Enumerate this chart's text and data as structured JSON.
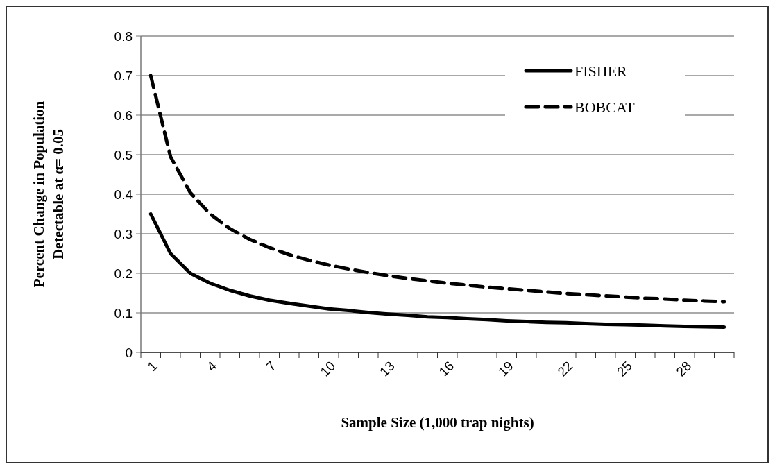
{
  "chart_data": {
    "type": "line",
    "xlabel": "Sample Size (1,000 trap nights)",
    "ylabel": "Percent Change in Population\nDetectable at α= 0.05",
    "categories": [
      "1",
      null,
      null,
      "4",
      null,
      null,
      "7",
      null,
      null,
      "10",
      null,
      null,
      "13",
      null,
      null,
      "16",
      null,
      null,
      "19",
      null,
      null,
      "22",
      null,
      null,
      "25",
      null,
      null,
      "28",
      null,
      null
    ],
    "series": [
      {
        "name": "FISHER",
        "color": "#000000",
        "line_style": "solid",
        "values": [
          0.35,
          0.25,
          0.2,
          0.175,
          0.157,
          0.143,
          0.132,
          0.124,
          0.117,
          0.11,
          0.106,
          0.101,
          0.097,
          0.094,
          0.09,
          0.088,
          0.085,
          0.083,
          0.08,
          0.078,
          0.076,
          0.075,
          0.073,
          0.071,
          0.07,
          0.069,
          0.067,
          0.066,
          0.065,
          0.064
        ]
      },
      {
        "name": "BOBCAT",
        "color": "#000000",
        "line_style": "dashed",
        "values": [
          0.7,
          0.495,
          0.404,
          0.35,
          0.313,
          0.286,
          0.265,
          0.247,
          0.233,
          0.221,
          0.211,
          0.202,
          0.194,
          0.187,
          0.181,
          0.175,
          0.17,
          0.165,
          0.161,
          0.157,
          0.153,
          0.149,
          0.146,
          0.143,
          0.14,
          0.137,
          0.135,
          0.132,
          0.13,
          0.128
        ]
      }
    ],
    "ylim": [
      0,
      0.8
    ],
    "yticks": [
      0,
      0.1,
      0.2,
      0.3,
      0.4,
      0.5,
      0.6,
      0.7,
      0.8
    ],
    "grid": "y",
    "legend": "top right"
  }
}
